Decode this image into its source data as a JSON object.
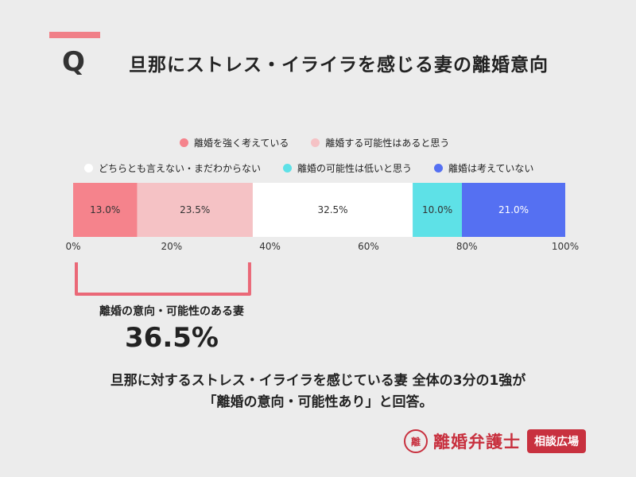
{
  "header": {
    "q_mark": "Q",
    "title": "旦那にストレス・イライラを感じる妻の離婚意向"
  },
  "chart_data": {
    "type": "bar",
    "orientation": "horizontal-stacked",
    "xlim": [
      0,
      100
    ],
    "xticks": [
      "0%",
      "20%",
      "40%",
      "60%",
      "80%",
      "100%"
    ],
    "legend_placement": "top",
    "series": [
      {
        "name": "離婚を強く考えている",
        "value": 13.0,
        "label": "13.0%",
        "color": "#f5838c",
        "text_color": "#333333"
      },
      {
        "name": "離婚する可能性はあると思う",
        "value": 23.5,
        "label": "23.5%",
        "color": "#f5c2c5",
        "text_color": "#333333"
      },
      {
        "name": "どちらとも言えない・まだわからない",
        "value": 32.5,
        "label": "32.5%",
        "color": "#ffffff",
        "text_color": "#333333"
      },
      {
        "name": "離婚の可能性は低いと思う",
        "value": 10.0,
        "label": "10.0%",
        "color": "#5ee1e7",
        "text_color": "#333333"
      },
      {
        "name": "離婚は考えていない",
        "value": 21.0,
        "label": "21.0%",
        "color": "#5570f2",
        "text_color": "#ffffff"
      }
    ],
    "bracket_range": [
      0,
      36.5
    ],
    "bracket_color": "#ea6877"
  },
  "bracket": {
    "label": "離婚の意向・可能性のある妻",
    "value": "36.5%"
  },
  "summary": {
    "line1": "旦那に対するストレス・イライラを感じている妻 全体の3分の1強が",
    "line2": "「離婚の意向・可能性あり」と回答。"
  },
  "brand": {
    "icon": "nagomi-seal-icon",
    "icon_glyph": "離",
    "name": "離婚弁護士",
    "badge": "相談広場"
  }
}
